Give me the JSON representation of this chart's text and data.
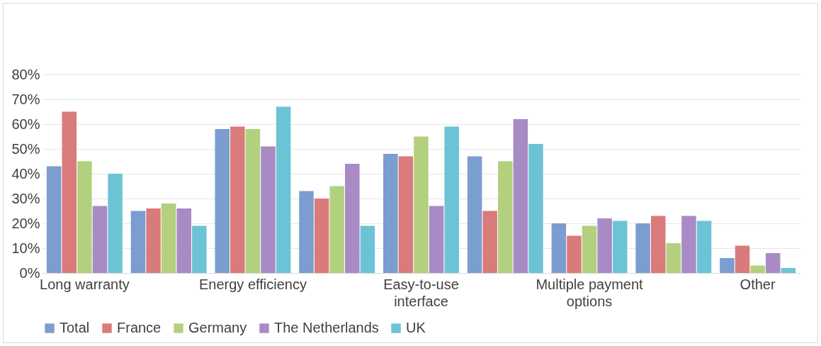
{
  "chart_data": {
    "type": "bar",
    "categories": [
      "Long warranty",
      null,
      "Energy efficiency",
      null,
      "Easy-to-use interface",
      null,
      "Multiple payment options",
      null,
      "Other"
    ],
    "series": [
      {
        "name": "Total",
        "color": "#7b9dcf",
        "values": [
          43,
          25,
          58,
          33,
          48,
          47,
          20,
          20,
          6
        ]
      },
      {
        "name": "France",
        "color": "#d97b7b",
        "values": [
          65,
          26,
          59,
          30,
          47,
          25,
          15,
          23,
          11
        ]
      },
      {
        "name": "Germany",
        "color": "#b3d07e",
        "values": [
          45,
          28,
          58,
          35,
          55,
          45,
          19,
          12,
          3
        ]
      },
      {
        "name": "The Netherlands",
        "color": "#a88bc5",
        "values": [
          27,
          26,
          51,
          44,
          27,
          62,
          22,
          23,
          8
        ]
      },
      {
        "name": "UK",
        "color": "#6dc3d6",
        "values": [
          40,
          19,
          67,
          19,
          59,
          52,
          21,
          21,
          2
        ]
      }
    ],
    "ylim": [
      0,
      80
    ],
    "yticks": [
      {
        "value": 0,
        "label": "0%"
      },
      {
        "value": 10,
        "label": "10%"
      },
      {
        "value": 20,
        "label": "20%"
      },
      {
        "value": 30,
        "label": "30%"
      },
      {
        "value": 40,
        "label": "40%"
      },
      {
        "value": 50,
        "label": "50%"
      },
      {
        "value": 60,
        "label": "60%"
      },
      {
        "value": 70,
        "label": "70%"
      },
      {
        "value": 80,
        "label": "80%"
      }
    ],
    "grid": "y",
    "legend": "bottom"
  }
}
